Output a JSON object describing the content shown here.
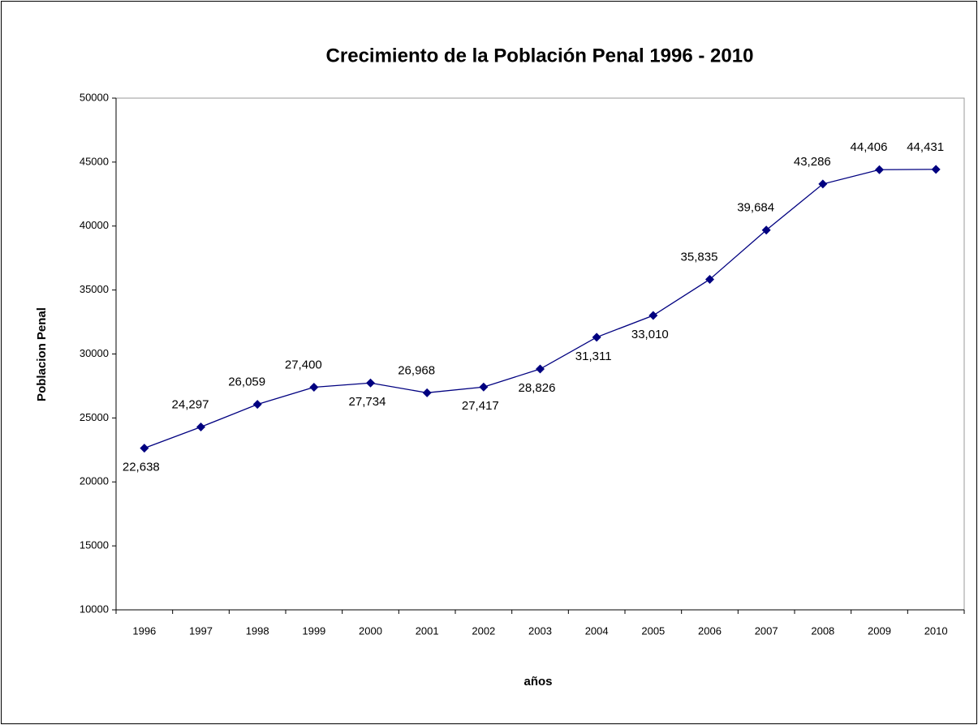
{
  "chart_data": {
    "type": "line",
    "title": "Crecimiento de la Población Penal 1996 - 2010",
    "x_label": "años",
    "y_label": "Poblacion Penal",
    "categories": [
      "1996",
      "1997",
      "1998",
      "1999",
      "2000",
      "2001",
      "2002",
      "2003",
      "2004",
      "2005",
      "2006",
      "2007",
      "2008",
      "2009",
      "2010"
    ],
    "series": [
      {
        "name": "Poblacion Penal",
        "color": "#000080",
        "values": [
          22638,
          24297,
          26059,
          27400,
          27734,
          26968,
          27417,
          28826,
          31311,
          33010,
          35835,
          39684,
          43286,
          44406,
          44431
        ],
        "value_labels": [
          "22,638",
          "24,297",
          "26,059",
          "27,400",
          "27,734",
          "26,968",
          "27,417",
          "28,826",
          "31,311",
          "33,010",
          "35,835",
          "39,684",
          "43,286",
          "44,406",
          "44,431"
        ]
      }
    ],
    "ylim": [
      10000,
      50000
    ],
    "yticks": [
      10000,
      15000,
      20000,
      25000,
      30000,
      35000,
      40000,
      45000,
      50000
    ],
    "grid": false
  }
}
